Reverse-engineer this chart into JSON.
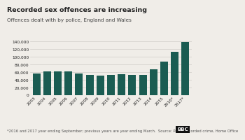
{
  "title": "Recorded sex offences are increasing",
  "subtitle": "Offences dealt with by police, England and Wales",
  "footer": "*2016 and 2017 year ending September; previous years are year ending March.  Source: Police recorded crime, Home Office",
  "categories": [
    "2003",
    "2004",
    "2005",
    "2006",
    "2007",
    "2008",
    "2009",
    "2010",
    "2011",
    "2012",
    "2013",
    "2014",
    "2015",
    "2016*",
    "2017*"
  ],
  "values": [
    57000,
    62000,
    62500,
    62000,
    56000,
    52500,
    50500,
    53000,
    54500,
    53000,
    53500,
    67000,
    88000,
    113000,
    138000
  ],
  "bar_color": "#1a5c52",
  "background_color": "#f0ede8",
  "ylim": [
    0,
    140000
  ],
  "yticks": [
    0,
    20000,
    40000,
    60000,
    80000,
    100000,
    120000,
    140000
  ],
  "title_fontsize": 6.8,
  "subtitle_fontsize": 5.2,
  "footer_fontsize": 3.8,
  "tick_fontsize": 4.2,
  "grid_color": "#d0ccc8",
  "text_color": "#222222",
  "spine_color": "#aaaaaa"
}
